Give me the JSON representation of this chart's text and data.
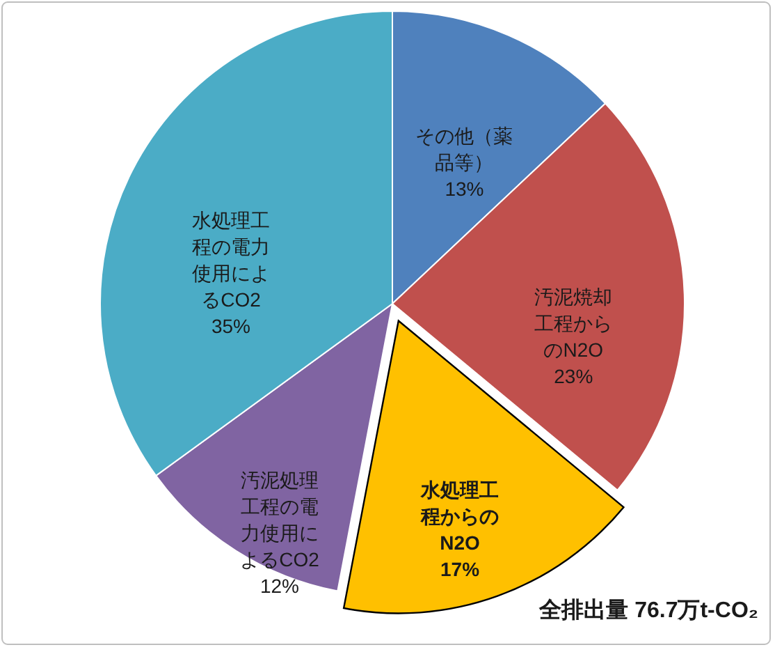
{
  "chart_data": {
    "type": "pie",
    "categories": [
      "その他（薬品等）",
      "汚泥焼却工程からのN2O",
      "水処理工程からのN2O",
      "汚泥処理工程の電力使用によるCO2",
      "水処理工程の電力使用によるCO2"
    ],
    "values": [
      13,
      23,
      17,
      12,
      35
    ],
    "colors": [
      "#4f81bd",
      "#c0504d",
      "#ffc000",
      "#8064a2",
      "#4bacc6"
    ],
    "value_labels": [
      "13%",
      "23%",
      "17%",
      "12%",
      "35%"
    ],
    "annotations": [
      "全排出量 76.7万t-CO₂"
    ]
  }
}
